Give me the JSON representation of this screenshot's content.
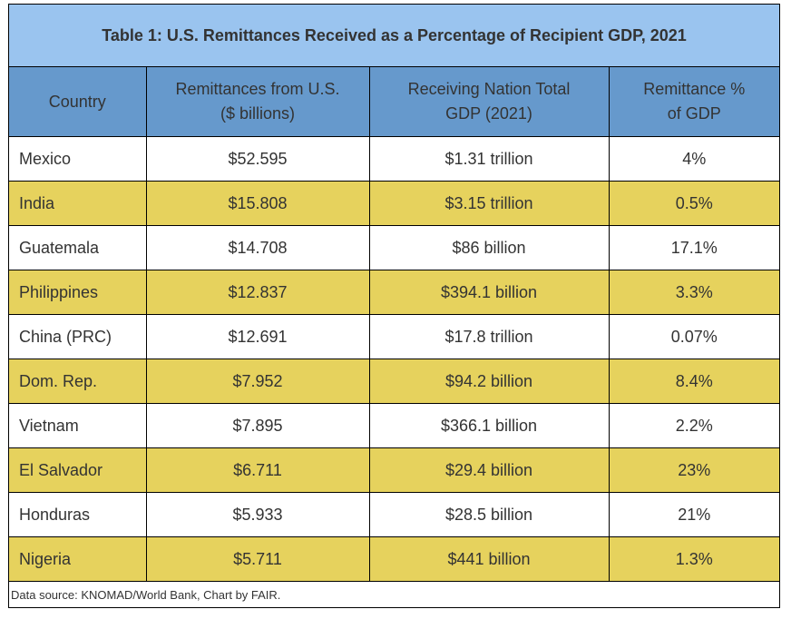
{
  "chart_data": {
    "type": "table",
    "title": "Table 1: U.S. Remittances Received as a Percentage of Recipient GDP, 2021",
    "columns": [
      {
        "line1": "Country",
        "line2": ""
      },
      {
        "line1": "Remittances from U.S.",
        "line2": "($ billions)"
      },
      {
        "line1": "Receiving Nation Total",
        "line2": "GDP (2021)"
      },
      {
        "line1": "Remittance %",
        "line2": "of GDP"
      }
    ],
    "rows": [
      [
        "Mexico",
        "$52.595",
        "$1.31 trillion",
        "4%"
      ],
      [
        "India",
        "$15.808",
        "$3.15 trillion",
        "0.5%"
      ],
      [
        "Guatemala",
        "$14.708",
        "$86 billion",
        "17.1%"
      ],
      [
        "Philippines",
        "$12.837",
        "$394.1 billion",
        "3.3%"
      ],
      [
        "China (PRC)",
        "$12.691",
        "$17.8 trillion",
        "0.07%"
      ],
      [
        "Dom. Rep.",
        "$7.952",
        "$94.2 billion",
        "8.4%"
      ],
      [
        "Vietnam",
        "$7.895",
        "$366.1 billion",
        "2.2%"
      ],
      [
        "El Salvador",
        "$6.711",
        "$29.4 billion",
        "23%"
      ],
      [
        "Honduras",
        "$5.933",
        "$28.5 billion",
        "21%"
      ],
      [
        "Nigeria",
        "$5.711",
        "$441 billion",
        "1.3%"
      ]
    ],
    "source": "Data source: KNOMAD/World Bank, Chart by FAIR."
  },
  "colors": {
    "title_bg": "#9ac4ef",
    "header_bg": "#6699cc",
    "stripe": "#e6d25d"
  }
}
